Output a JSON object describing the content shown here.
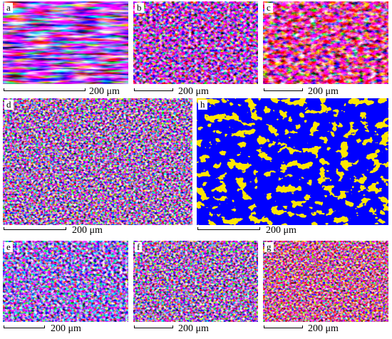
{
  "panels": [
    {
      "label": "a",
      "scale": "200 μm"
    },
    {
      "label": "b",
      "scale": "200 μm"
    },
    {
      "label": "c",
      "scale": "200 μm"
    },
    {
      "label": "d",
      "scale": "200 μm"
    },
    {
      "label": "h",
      "scale": "200 μm"
    },
    {
      "label": "e",
      "scale": "200 μm"
    },
    {
      "label": "f",
      "scale": "200 μm"
    },
    {
      "label": "g",
      "scale": "200 μm"
    }
  ]
}
